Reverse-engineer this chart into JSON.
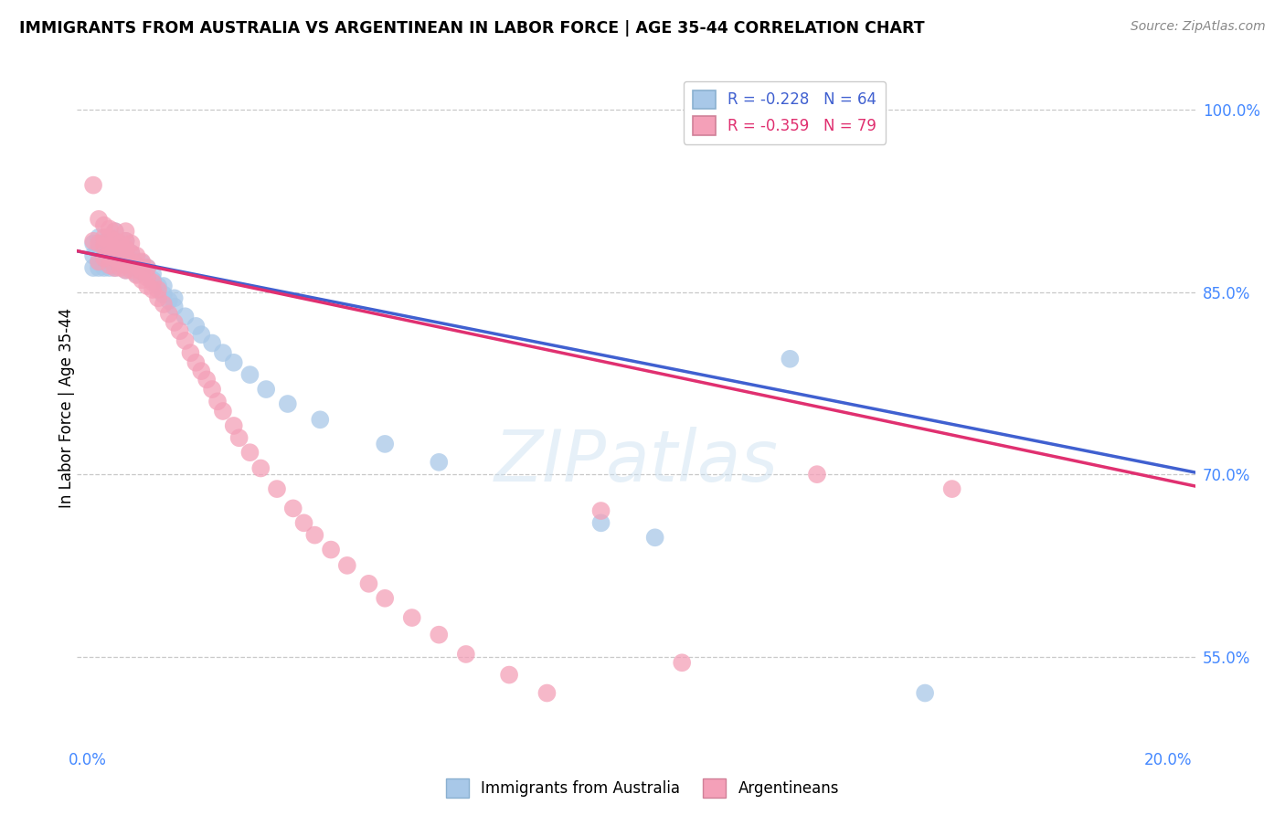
{
  "title": "IMMIGRANTS FROM AUSTRALIA VS ARGENTINEAN IN LABOR FORCE | AGE 35-44 CORRELATION CHART",
  "source": "Source: ZipAtlas.com",
  "ylabel": "In Labor Force | Age 35-44",
  "australia_color": "#a8c8e8",
  "argentina_color": "#f4a0b8",
  "australia_line_color": "#4060d0",
  "argentina_line_color": "#e03070",
  "ymin": 0.48,
  "ymax": 1.03,
  "xmin": -0.002,
  "xmax": 0.205,
  "ytick_positions": [
    0.55,
    0.7,
    0.85,
    1.0
  ],
  "ytick_labels": [
    "55.0%",
    "70.0%",
    "85.0%",
    "100.0%"
  ],
  "xtick_positions": [
    0.0,
    0.04,
    0.08,
    0.12,
    0.16,
    0.2
  ],
  "xtick_labels": [
    "0.0%",
    "",
    "",
    "",
    "",
    "20.0%"
  ],
  "australia_R": "-0.228",
  "australia_N": "64",
  "argentina_R": "-0.359",
  "argentina_N": "79",
  "australia_points_x": [
    0.001,
    0.001,
    0.001,
    0.002,
    0.002,
    0.002,
    0.002,
    0.003,
    0.003,
    0.003,
    0.003,
    0.004,
    0.004,
    0.004,
    0.004,
    0.004,
    0.005,
    0.005,
    0.005,
    0.005,
    0.005,
    0.005,
    0.006,
    0.006,
    0.006,
    0.006,
    0.007,
    0.007,
    0.007,
    0.007,
    0.007,
    0.007,
    0.008,
    0.008,
    0.008,
    0.009,
    0.009,
    0.01,
    0.01,
    0.011,
    0.012,
    0.012,
    0.013,
    0.014,
    0.014,
    0.015,
    0.016,
    0.016,
    0.018,
    0.02,
    0.021,
    0.023,
    0.025,
    0.027,
    0.03,
    0.033,
    0.037,
    0.043,
    0.055,
    0.065,
    0.095,
    0.105,
    0.13,
    0.155
  ],
  "australia_points_y": [
    0.87,
    0.88,
    0.89,
    0.875,
    0.885,
    0.895,
    0.87,
    0.875,
    0.88,
    0.87,
    0.875,
    0.87,
    0.875,
    0.88,
    0.885,
    0.895,
    0.87,
    0.875,
    0.88,
    0.888,
    0.892,
    0.9,
    0.872,
    0.878,
    0.882,
    0.888,
    0.868,
    0.873,
    0.878,
    0.883,
    0.887,
    0.892,
    0.87,
    0.876,
    0.882,
    0.865,
    0.872,
    0.868,
    0.874,
    0.87,
    0.86,
    0.865,
    0.855,
    0.848,
    0.855,
    0.843,
    0.838,
    0.845,
    0.83,
    0.822,
    0.815,
    0.808,
    0.8,
    0.792,
    0.782,
    0.77,
    0.758,
    0.745,
    0.725,
    0.71,
    0.66,
    0.648,
    0.795,
    0.52
  ],
  "argentina_points_x": [
    0.001,
    0.001,
    0.002,
    0.002,
    0.002,
    0.003,
    0.003,
    0.003,
    0.003,
    0.004,
    0.004,
    0.004,
    0.004,
    0.004,
    0.005,
    0.005,
    0.005,
    0.005,
    0.005,
    0.006,
    0.006,
    0.006,
    0.006,
    0.007,
    0.007,
    0.007,
    0.007,
    0.007,
    0.007,
    0.008,
    0.008,
    0.008,
    0.008,
    0.009,
    0.009,
    0.009,
    0.01,
    0.01,
    0.01,
    0.011,
    0.011,
    0.011,
    0.012,
    0.012,
    0.013,
    0.013,
    0.014,
    0.015,
    0.016,
    0.017,
    0.018,
    0.019,
    0.02,
    0.021,
    0.022,
    0.023,
    0.024,
    0.025,
    0.027,
    0.028,
    0.03,
    0.032,
    0.035,
    0.038,
    0.04,
    0.042,
    0.045,
    0.048,
    0.052,
    0.055,
    0.06,
    0.065,
    0.07,
    0.078,
    0.085,
    0.095,
    0.11,
    0.135,
    0.16
  ],
  "argentina_points_y": [
    0.892,
    0.938,
    0.875,
    0.89,
    0.91,
    0.878,
    0.888,
    0.895,
    0.905,
    0.872,
    0.88,
    0.888,
    0.895,
    0.902,
    0.87,
    0.878,
    0.885,
    0.892,
    0.9,
    0.87,
    0.877,
    0.883,
    0.89,
    0.868,
    0.875,
    0.88,
    0.886,
    0.892,
    0.9,
    0.868,
    0.875,
    0.882,
    0.89,
    0.864,
    0.872,
    0.88,
    0.86,
    0.867,
    0.875,
    0.855,
    0.862,
    0.87,
    0.852,
    0.858,
    0.845,
    0.852,
    0.84,
    0.832,
    0.825,
    0.818,
    0.81,
    0.8,
    0.792,
    0.785,
    0.778,
    0.77,
    0.76,
    0.752,
    0.74,
    0.73,
    0.718,
    0.705,
    0.688,
    0.672,
    0.66,
    0.65,
    0.638,
    0.625,
    0.61,
    0.598,
    0.582,
    0.568,
    0.552,
    0.535,
    0.52,
    0.67,
    0.545,
    0.7,
    0.688
  ]
}
